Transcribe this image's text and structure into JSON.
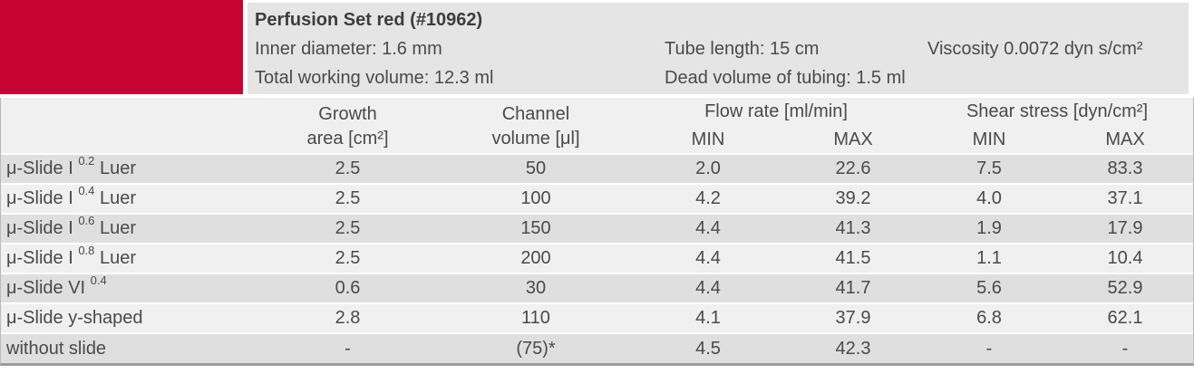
{
  "colors": {
    "accent_red": "#c70434",
    "panel_gray": "#e5e5e5",
    "header_gray": "#f0f0f0",
    "row_odd": "#dfdfdf",
    "row_even": "#f0f0f0"
  },
  "header": {
    "title": "Perfusion Set red (#10962)",
    "inner_diameter": "Inner diameter: 1.6 mm",
    "tube_length": "Tube length: 15 cm",
    "viscosity": "Viscosity 0.0072 dyn s/cm²",
    "total_working_volume": "Total working volume: 12.3 ml",
    "dead_volume": "Dead volume of tubing: 1.5 ml"
  },
  "table": {
    "growth_header": {
      "line1": "Growth",
      "line2": "area [cm²]"
    },
    "channel_header": {
      "line1": "Channel",
      "line2": "volume [μl]"
    },
    "flow_group": {
      "label": "Flow rate [ml/min]",
      "min": "MIN",
      "max": "MAX"
    },
    "shear_group": {
      "label": "Shear stress [dyn/cm²]",
      "min": "MIN",
      "max": "MAX"
    },
    "rows": [
      {
        "label": {
          "prefix": "μ-Slide I ",
          "sup": "0.2",
          "suffix": " Luer"
        },
        "values": [
          "2.5",
          "50",
          "2.0",
          "22.6",
          "7.5",
          "83.3"
        ]
      },
      {
        "label": {
          "prefix": "μ-Slide I ",
          "sup": "0.4",
          "suffix": " Luer"
        },
        "values": [
          "2.5",
          "100",
          "4.2",
          "39.2",
          "4.0",
          "37.1"
        ]
      },
      {
        "label": {
          "prefix": "μ-Slide I ",
          "sup": "0.6",
          "suffix": " Luer"
        },
        "values": [
          "2.5",
          "150",
          "4.4",
          "41.3",
          "1.9",
          "17.9"
        ]
      },
      {
        "label": {
          "prefix": "μ-Slide I ",
          "sup": "0.8",
          "suffix": " Luer"
        },
        "values": [
          "2.5",
          "200",
          "4.4",
          "41.5",
          "1.1",
          "10.4"
        ]
      },
      {
        "label": {
          "prefix": "μ-Slide VI ",
          "sup": "0.4",
          "suffix": ""
        },
        "values": [
          "0.6",
          "30",
          "4.4",
          "41.7",
          "5.6",
          "52.9"
        ]
      },
      {
        "label": {
          "prefix": "μ-Slide y-shaped",
          "sup": "",
          "suffix": ""
        },
        "values": [
          "2.8",
          "110",
          "4.1",
          "37.9",
          "6.8",
          "62.1"
        ]
      },
      {
        "label": {
          "prefix": "without slide",
          "sup": "",
          "suffix": ""
        },
        "values": [
          "-",
          "(75)*",
          "4.5",
          "42.3",
          "-",
          "-"
        ]
      }
    ]
  }
}
